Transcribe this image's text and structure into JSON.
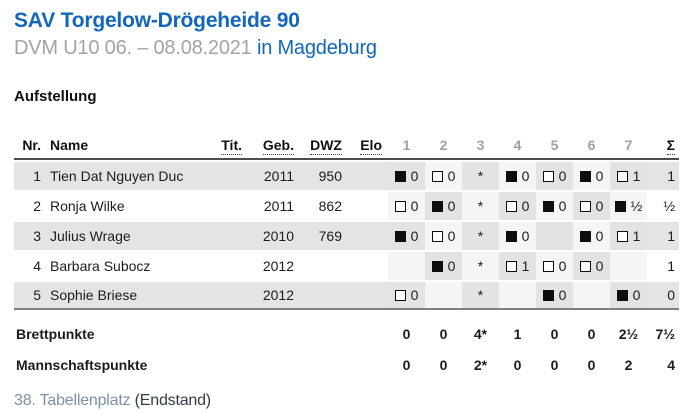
{
  "header": {
    "title": "SAV Torgelow-Drögeheide 90",
    "subtitle": {
      "event": "DVM U10 06. – 08.08.2021",
      "location": "in Magdeburg"
    }
  },
  "section": {
    "title": "Aufstellung"
  },
  "table": {
    "headers": {
      "nr": "Nr.",
      "name": "Name",
      "tit": "Tit.",
      "geb": "Geb.",
      "dwz": "DWZ",
      "elo": "Elo",
      "sum": "Σ"
    },
    "round_headers": [
      "1",
      "2",
      "3",
      "4",
      "5",
      "6",
      "7"
    ],
    "players": [
      {
        "nr": "1",
        "name": "Tien Dat Nguyen Duc",
        "tit": "",
        "geb": "2011",
        "dwz": "950",
        "elo": "",
        "rounds": [
          {
            "piece": "black",
            "score": "0"
          },
          {
            "piece": "white",
            "score": "0"
          },
          {
            "piece": "",
            "score": "*"
          },
          {
            "piece": "black",
            "score": "0"
          },
          {
            "piece": "white",
            "score": "0"
          },
          {
            "piece": "black",
            "score": "0"
          },
          {
            "piece": "white",
            "score": "1"
          }
        ],
        "sum": "1"
      },
      {
        "nr": "2",
        "name": "Ronja Wilke",
        "tit": "",
        "geb": "2011",
        "dwz": "862",
        "elo": "",
        "rounds": [
          {
            "piece": "white",
            "score": "0"
          },
          {
            "piece": "black",
            "score": "0"
          },
          {
            "piece": "",
            "score": "*"
          },
          {
            "piece": "white",
            "score": "0"
          },
          {
            "piece": "black",
            "score": "0"
          },
          {
            "piece": "white",
            "score": "0"
          },
          {
            "piece": "black",
            "score": "½"
          }
        ],
        "sum": "½"
      },
      {
        "nr": "3",
        "name": "Julius Wrage",
        "tit": "",
        "geb": "2010",
        "dwz": "769",
        "elo": "",
        "rounds": [
          {
            "piece": "black",
            "score": "0"
          },
          {
            "piece": "white",
            "score": "0"
          },
          {
            "piece": "",
            "score": "*"
          },
          {
            "piece": "black",
            "score": "0"
          },
          {
            "piece": "",
            "score": ""
          },
          {
            "piece": "black",
            "score": "0"
          },
          {
            "piece": "white",
            "score": "1"
          }
        ],
        "sum": "1"
      },
      {
        "nr": "4",
        "name": "Barbara Subocz",
        "tit": "",
        "geb": "2012",
        "dwz": "",
        "elo": "",
        "rounds": [
          {
            "piece": "",
            "score": ""
          },
          {
            "piece": "black",
            "score": "0"
          },
          {
            "piece": "",
            "score": "*"
          },
          {
            "piece": "white",
            "score": "1"
          },
          {
            "piece": "white",
            "score": "0"
          },
          {
            "piece": "white",
            "score": "0"
          },
          {
            "piece": "",
            "score": ""
          }
        ],
        "sum": "1"
      },
      {
        "nr": "5",
        "name": "Sophie Briese",
        "tit": "",
        "geb": "2012",
        "dwz": "",
        "elo": "",
        "rounds": [
          {
            "piece": "white",
            "score": "0"
          },
          {
            "piece": "",
            "score": ""
          },
          {
            "piece": "",
            "score": "*"
          },
          {
            "piece": "",
            "score": ""
          },
          {
            "piece": "black",
            "score": "0"
          },
          {
            "piece": "",
            "score": ""
          },
          {
            "piece": "black",
            "score": "0"
          }
        ],
        "sum": "0"
      }
    ],
    "footer_rows": [
      {
        "label": "Brettpunkte",
        "values": [
          "0",
          "0",
          "4*",
          "1",
          "0",
          "0",
          "2½"
        ],
        "sum": "7½"
      },
      {
        "label": "Mannschaftspunkte",
        "values": [
          "0",
          "0",
          "2*",
          "0",
          "0",
          "0",
          "2"
        ],
        "sum": "4"
      }
    ]
  },
  "footer_note": {
    "rank": "38. Tabellenplatz",
    "status": "(Endstand)"
  },
  "colors": {
    "accent_blue": "#1266bd",
    "muted_gray": "#a3a3a3",
    "rank_blue_gray": "#7d90a8",
    "row_stripe": "#e4e4e4",
    "checker_dark": "#e3e3e3",
    "checker_light": "#f5f5f5"
  },
  "chart_data": {
    "type": "table",
    "title": "Aufstellung — SAV Torgelow-Drögeheide 90",
    "columns": [
      "Nr.",
      "Name",
      "Tit.",
      "Geb.",
      "DWZ",
      "Elo",
      "1",
      "2",
      "3",
      "4",
      "5",
      "6",
      "7",
      "Σ"
    ],
    "rows": [
      [
        "1",
        "Tien Dat Nguyen Duc",
        "",
        "2011",
        "950",
        "",
        "■0",
        "□0",
        "*",
        "■0",
        "□0",
        "■0",
        "□1",
        "1"
      ],
      [
        "2",
        "Ronja Wilke",
        "",
        "2011",
        "862",
        "",
        "□0",
        "■0",
        "*",
        "□0",
        "■0",
        "□0",
        "■½",
        "½"
      ],
      [
        "3",
        "Julius Wrage",
        "",
        "2010",
        "769",
        "",
        "■0",
        "□0",
        "*",
        "■0",
        "",
        "■0",
        "□1",
        "1"
      ],
      [
        "4",
        "Barbara Subocz",
        "",
        "2012",
        "",
        "",
        "",
        "■0",
        "*",
        "□1",
        "□0",
        "□0",
        "",
        "1"
      ],
      [
        "5",
        "Sophie Briese",
        "",
        "2012",
        "",
        "",
        "□0",
        "",
        "*",
        "",
        "■0",
        "",
        "■0",
        "0"
      ],
      [
        "",
        "Brettpunkte",
        "",
        "",
        "",
        "",
        "0",
        "0",
        "4*",
        "1",
        "0",
        "0",
        "2½",
        "7½"
      ],
      [
        "",
        "Mannschaftspunkte",
        "",
        "",
        "",
        "",
        "0",
        "0",
        "2*",
        "0",
        "0",
        "0",
        "2",
        "4"
      ]
    ]
  }
}
